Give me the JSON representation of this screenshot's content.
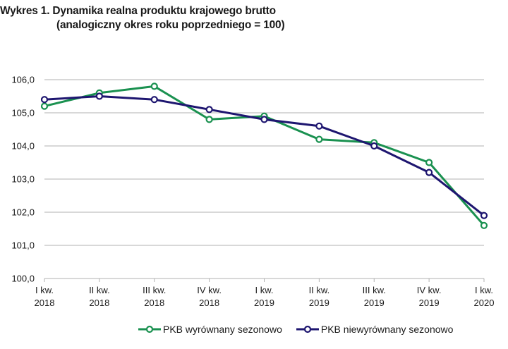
{
  "title_line1": "Wykres 1. Dynamika realna produktu krajowego brutto",
  "title_line2": "(analogiczny okres roku poprzedniego = 100)",
  "colors": {
    "green": "#1a9150",
    "navy": "#1e1670",
    "grid": "#b0b0b0"
  },
  "chart_data": {
    "type": "line",
    "title": "Wykres 1. Dynamika realna produktu krajowego brutto (analogiczny okres roku poprzedniego = 100)",
    "xlabel": "",
    "ylabel": "",
    "categories": [
      [
        "I kw.",
        "2018"
      ],
      [
        "II kw.",
        "2018"
      ],
      [
        "III kw.",
        "2018"
      ],
      [
        "IV kw.",
        "2018"
      ],
      [
        "I kw.",
        "2019"
      ],
      [
        "II kw.",
        "2019"
      ],
      [
        "III kw.",
        "2019"
      ],
      [
        "IV kw.",
        "2019"
      ],
      [
        "I kw.",
        "2020"
      ]
    ],
    "ylim": [
      100,
      106
    ],
    "yticks": [
      "100,0",
      "101,0",
      "102,0",
      "103,0",
      "104,0",
      "105,0",
      "106,0"
    ],
    "grid": true,
    "legend_position": "bottom",
    "series": [
      {
        "name": "PKB wyrównany sezonowo",
        "color": "#1a9150",
        "values": [
          105.2,
          105.6,
          105.8,
          104.8,
          104.9,
          104.2,
          104.1,
          103.5,
          101.6
        ]
      },
      {
        "name": "PKB niewyrównany sezonowo",
        "color": "#1e1670",
        "values": [
          105.4,
          105.5,
          105.4,
          105.1,
          104.8,
          104.6,
          104.0,
          103.2,
          101.9
        ]
      }
    ]
  }
}
